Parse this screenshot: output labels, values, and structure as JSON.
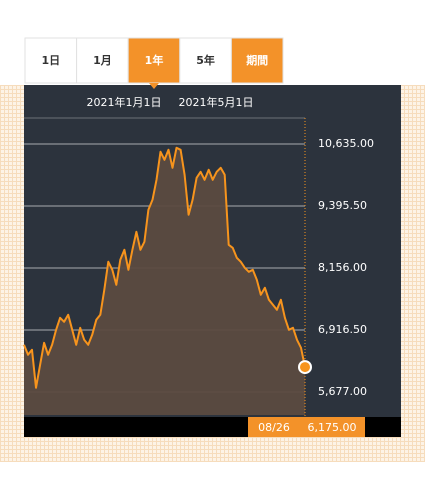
{
  "tabs": [
    {
      "label": "1日",
      "style": "default"
    },
    {
      "label": "1月",
      "style": "default"
    },
    {
      "label": "1年",
      "style": "active"
    },
    {
      "label": "5年",
      "style": "default"
    },
    {
      "label": "期間",
      "style": "accent"
    }
  ],
  "chart_data": {
    "type": "area",
    "date_labels": [
      "2021年1月1日",
      "2021年5月1日"
    ],
    "series": [
      {
        "color": "#f7941d",
        "values": [
          6620,
          6420,
          6520,
          5760,
          6220,
          6660,
          6420,
          6620,
          6920,
          7160,
          7080,
          7220,
          6920,
          6620,
          6960,
          6720,
          6620,
          6820,
          7120,
          7220,
          7720,
          8280,
          8120,
          7820,
          8320,
          8520,
          8120,
          8520,
          8880,
          8520,
          8680,
          9320,
          9520,
          9920,
          10480,
          10320,
          10520,
          10160,
          10560,
          10520,
          10020,
          9220,
          9520,
          9960,
          10080,
          9920,
          10120,
          9920,
          10080,
          10160,
          10020,
          8620,
          8560,
          8360,
          8280,
          8160,
          8080,
          8120,
          7920,
          7620,
          7760,
          7520,
          7420,
          7320,
          7520,
          7160,
          6920,
          6960,
          6720,
          6560,
          6175
        ],
        "value_labels": [
          null,
          null,
          null,
          null,
          null,
          null,
          null,
          null,
          null,
          null,
          null,
          null,
          null,
          null,
          null,
          null,
          null,
          null,
          null,
          null,
          null,
          null,
          null,
          null,
          null,
          null,
          null,
          null,
          null,
          null,
          null,
          null,
          null,
          null,
          null,
          null,
          null,
          null,
          null,
          null,
          null,
          null,
          null,
          null,
          null,
          null,
          null,
          null,
          null,
          null,
          null,
          null,
          null,
          null,
          null,
          null,
          null,
          null,
          null,
          null,
          null,
          null,
          null,
          null,
          null,
          null,
          null,
          null,
          null,
          null,
          "6,175.00"
        ]
      }
    ],
    "last_date": "08/26",
    "ylim": [
      5217,
      11155
    ],
    "yticks": [
      {
        "value": 5677,
        "label": "5,677.00"
      },
      {
        "value": 6916.5,
        "label": "6,916.50"
      },
      {
        "value": 8156,
        "label": "8,156.00"
      },
      {
        "value": 9395.5,
        "label": "9,395.50"
      },
      {
        "value": 10635,
        "label": "10,635.00"
      }
    ],
    "grid": true
  }
}
